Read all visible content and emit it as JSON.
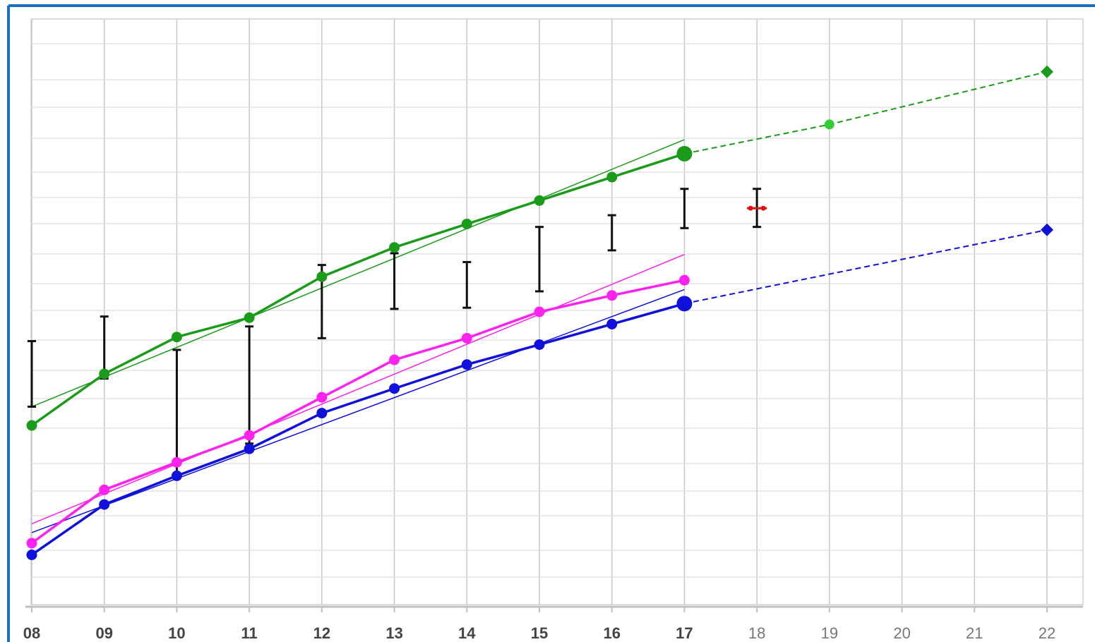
{
  "chart_data": {
    "type": "line",
    "title": "",
    "xlabel": "",
    "ylabel": "",
    "x_tick_labels": [
      "08",
      "09",
      "10",
      "11",
      "12",
      "13",
      "14",
      "15",
      "16",
      "17",
      "18",
      "19",
      "20",
      "21",
      "22"
    ],
    "xlim": [
      8,
      22
    ],
    "ylim": [
      0,
      100
    ],
    "grid": true,
    "y_tick_labels_shown": false,
    "colors": {
      "green": "#1a9c1a",
      "light_green": "#33cc33",
      "magenta": "#ff22ee",
      "blue": "#1010dd",
      "error_bar": "#111111",
      "red_marker": "#dd1111",
      "frame": "#1a6fc4",
      "grid": "#c8c8c8"
    },
    "series": [
      {
        "color_key": "green",
        "style": "line-marker",
        "x": [
          8,
          9,
          10,
          11,
          12,
          13,
          14,
          15,
          16,
          17
        ],
        "y": [
          30.6,
          39.4,
          45.7,
          49.0,
          56.0,
          61.0,
          65.0,
          69.0,
          73.0,
          77.0
        ]
      },
      {
        "color_key": "green",
        "style": "trendline",
        "x": [
          8,
          17
        ],
        "y": [
          33.8,
          79.4
        ]
      },
      {
        "color_key": "light_green",
        "style": "dashed-projection",
        "x": [
          17,
          19,
          22
        ],
        "y": [
          77.0,
          82.0,
          91.0
        ],
        "end_marker": "diamond"
      },
      {
        "color_key": "magenta",
        "style": "line-marker",
        "x": [
          8,
          9,
          10,
          11,
          12,
          13,
          14,
          15,
          16,
          17
        ],
        "y": [
          10.5,
          19.6,
          24.3,
          28.9,
          35.4,
          41.8,
          45.5,
          50.0,
          52.8,
          55.4
        ]
      },
      {
        "color_key": "magenta",
        "style": "trendline",
        "x": [
          8,
          17
        ],
        "y": [
          13.8,
          59.8
        ]
      },
      {
        "color_key": "blue",
        "style": "line-marker",
        "x": [
          8,
          9,
          10,
          11,
          12,
          13,
          14,
          15,
          16,
          17
        ],
        "y": [
          8.5,
          17.1,
          22.0,
          26.6,
          32.7,
          36.9,
          41.0,
          44.4,
          47.9,
          51.4
        ]
      },
      {
        "color_key": "blue",
        "style": "trendline",
        "x": [
          8,
          17
        ],
        "y": [
          12.3,
          53.8
        ]
      },
      {
        "color_key": "blue",
        "style": "dashed-projection",
        "x": [
          17,
          22
        ],
        "y": [
          51.4,
          64.0
        ],
        "end_marker": "diamond"
      }
    ],
    "error_bars": [
      {
        "x": 8,
        "low": 33.8,
        "high": 45.0
      },
      {
        "x": 9,
        "low": 38.6,
        "high": 49.2
      },
      {
        "x": 10,
        "low": 22.0,
        "high": 43.5
      },
      {
        "x": 11,
        "low": 27.5,
        "high": 47.5
      },
      {
        "x": 12,
        "low": 45.5,
        "high": 58.0
      },
      {
        "x": 13,
        "low": 50.5,
        "high": 60.0
      },
      {
        "x": 14,
        "low": 50.7,
        "high": 58.5
      },
      {
        "x": 15,
        "low": 53.5,
        "high": 64.5
      },
      {
        "x": 16,
        "low": 60.5,
        "high": 66.5
      },
      {
        "x": 17,
        "low": 64.3,
        "high": 71.0
      },
      {
        "x": 18,
        "low": 64.5,
        "high": 71.0
      }
    ],
    "red_marker": {
      "x": 18,
      "y": 67.7
    }
  }
}
